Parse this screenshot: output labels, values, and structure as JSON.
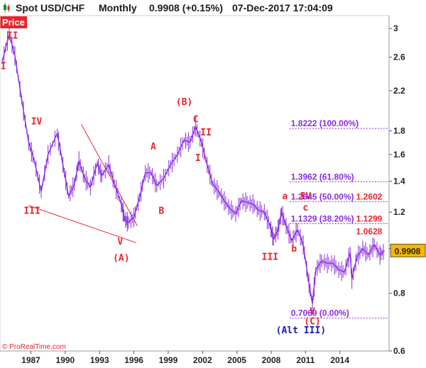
{
  "header": {
    "title": "Spot USD/CHF",
    "period": "Monthly",
    "last": "0.9908 (+0.15%)",
    "datetime": "07-Dec-2017 17:04:09"
  },
  "price_tag": "Price",
  "watermark": "© ProRealTime.com",
  "colors": {
    "price": "#8a2be2",
    "wave_labels": "#e8262e",
    "fib": "#8a2be2",
    "alt_label": "#1a1ab0",
    "last_box": "#f5b800"
  },
  "chart_data": {
    "type": "line",
    "title": "Spot USD/CHF",
    "xlabel": "",
    "ylabel": "",
    "scale": "log",
    "ylim": [
      0.6,
      3.2
    ],
    "xlim": [
      1984.3,
      2018.3
    ],
    "x_ticks": [
      "1987",
      "1990",
      "1993",
      "1996",
      "1999",
      "2002",
      "2005",
      "2008",
      "2011",
      "2014"
    ],
    "y_ticks": [
      "3",
      "2.6",
      "2.2",
      "1.8",
      "1.6",
      "1.4",
      "1.2",
      "1",
      "0.8",
      "0.6"
    ],
    "last_price": "0.9908",
    "series": [
      {
        "x": [
          1984.5,
          1985.1,
          1985.6,
          1986.2,
          1986.8,
          1987.3,
          1987.9,
          1988.5,
          1989.3,
          1989.8,
          1990.3,
          1990.8,
          1991.2,
          1991.7,
          1992.2,
          1992.8,
          1993.2,
          1993.8,
          1994.3,
          1994.9,
          1995.2,
          1995.5,
          1996.0,
          1996.5,
          1997.0,
          1997.5,
          1998.0,
          1998.6,
          1999.2,
          1999.8,
          2000.4,
          2000.9,
          2001.4,
          2001.9,
          2002.4,
          2002.9,
          2003.4,
          2003.9,
          2004.4,
          2004.9,
          2005.4,
          2005.9,
          2006.4,
          2006.9,
          2007.4,
          2007.9,
          2008.2,
          2008.6,
          2008.9,
          2009.3,
          2009.8,
          2010.3,
          2010.8,
          2011.2,
          2011.6,
          2011.9,
          2012.4,
          2012.9,
          2013.4,
          2013.9,
          2014.4,
          2014.9,
          2015.05,
          2015.5,
          2016.0,
          2016.5,
          2017.0,
          2017.5,
          2017.9
        ],
        "y": [
          2.55,
          2.92,
          2.62,
          2.1,
          1.7,
          1.55,
          1.33,
          1.6,
          1.78,
          1.52,
          1.3,
          1.38,
          1.55,
          1.42,
          1.36,
          1.53,
          1.44,
          1.52,
          1.38,
          1.25,
          1.16,
          1.14,
          1.17,
          1.29,
          1.46,
          1.46,
          1.37,
          1.42,
          1.52,
          1.6,
          1.72,
          1.7,
          1.84,
          1.7,
          1.52,
          1.38,
          1.33,
          1.27,
          1.22,
          1.19,
          1.27,
          1.26,
          1.25,
          1.21,
          1.2,
          1.12,
          1.05,
          1.1,
          1.2,
          1.12,
          1.04,
          1.1,
          1.02,
          0.87,
          0.76,
          0.9,
          0.94,
          0.93,
          0.93,
          0.9,
          0.89,
          0.98,
          0.86,
          0.96,
          1.0,
          0.97,
          1.02,
          0.97,
          0.99
        ]
      }
    ],
    "wave_labels": [
      {
        "text": "II",
        "x": 1985.4,
        "y": 2.85
      },
      {
        "text": "I",
        "x": 1984.6,
        "y": 2.45
      },
      {
        "text": "IV",
        "x": 1987.5,
        "y": 1.86
      },
      {
        "text": "III",
        "x": 1987.1,
        "y": 1.19
      },
      {
        "text": "V",
        "x": 1994.8,
        "y": 1.02
      },
      {
        "text": "(A)",
        "x": 1994.9,
        "y": 0.94
      },
      {
        "text": "(B)",
        "x": 2000.4,
        "y": 2.05
      },
      {
        "text": "C",
        "x": 2001.4,
        "y": 1.88
      },
      {
        "text": "II",
        "x": 2002.3,
        "y": 1.76
      },
      {
        "text": "I",
        "x": 2001.6,
        "y": 1.55
      },
      {
        "text": "A",
        "x": 1997.7,
        "y": 1.64
      },
      {
        "text": "B",
        "x": 1998.4,
        "y": 1.19
      },
      {
        "text": "a",
        "x": 2009.2,
        "y": 1.28
      },
      {
        "text": "IV",
        "x": 2011.0,
        "y": 1.28
      },
      {
        "text": "c",
        "x": 2011.0,
        "y": 1.21
      },
      {
        "text": "b",
        "x": 2010.0,
        "y": 0.985
      },
      {
        "text": "III",
        "x": 2007.9,
        "y": 0.945
      },
      {
        "text": "V",
        "x": 2011.6,
        "y": 0.72
      },
      {
        "text": "(C)",
        "x": 2011.6,
        "y": 0.685
      }
    ],
    "alt_label": {
      "text": "(Alt III)",
      "x": 2010.6,
      "y": 0.655
    },
    "fib_levels": [
      {
        "label": "1.8222 (100.00%)",
        "y": 1.8222,
        "x_start": 2009.6
      },
      {
        "label": "1.3962 (61.80%)",
        "y": 1.3962,
        "x_start": 2009.6
      },
      {
        "label": "1.2645 (50.00%)",
        "y": 1.2645,
        "x_start": 2009.6
      },
      {
        "label": "1.1329 (38.20%)",
        "y": 1.1329,
        "x_start": 2009.6
      },
      {
        "label": "0.7069 (0.00%)",
        "y": 0.7069,
        "x_start": 2009.6
      }
    ],
    "overlay_labels": [
      {
        "text": "1.2602",
        "y": 1.2645,
        "x_start": 2015.3
      },
      {
        "text": "1.1299",
        "y": 1.1329,
        "x_start": 2015.3
      },
      {
        "text": "1.0628",
        "y": 1.0628,
        "x_start": 2015.3
      }
    ],
    "trendlines": [
      {
        "x": [
          1991.4,
          1996.3
        ],
        "y": [
          1.86,
          1.12
        ]
      },
      {
        "x": [
          1986.8,
          1996.2
        ],
        "y": [
          1.24,
          1.03
        ]
      }
    ]
  }
}
